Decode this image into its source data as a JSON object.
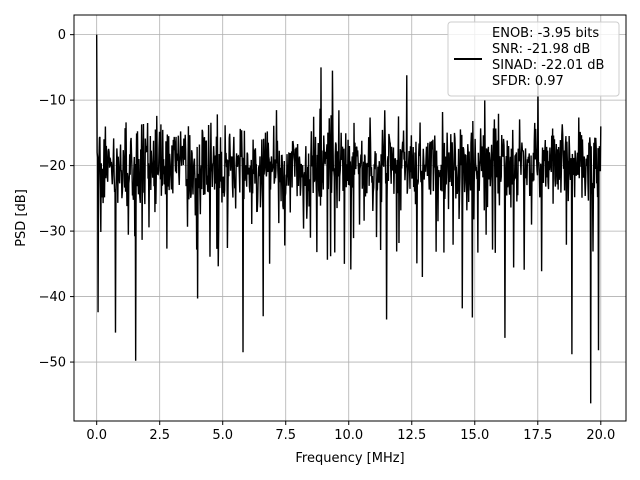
{
  "chart_data": {
    "type": "line",
    "title": "",
    "xlabel": "Frequency [MHz]",
    "ylabel": "PSD [dB]",
    "xlim": [
      -0.9,
      21.0
    ],
    "ylim": [
      -59.0,
      3.0
    ],
    "xticks": [
      0.0,
      2.5,
      5.0,
      7.5,
      10.0,
      12.5,
      15.0,
      17.5,
      20.0
    ],
    "xtick_labels": [
      "0.0",
      "2.5",
      "5.0",
      "7.5",
      "10.0",
      "12.5",
      "15.0",
      "17.5",
      "20.0"
    ],
    "yticks": [
      0,
      -10,
      -20,
      -30,
      -40,
      -50
    ],
    "ytick_labels": [
      "0",
      "−10",
      "−20",
      "−30",
      "−40",
      "−50"
    ],
    "grid": true,
    "legend_position": "top-right",
    "series": [
      {
        "legend_lines": [
          "ENOB: -3.95 bits",
          "SNR: -21.98 dB",
          "SINAD: -22.01 dB",
          "SFDR: 0.97"
        ],
        "color": "#000000",
        "x_start": 0.0,
        "x_end": 20.0,
        "noise_floor_mean": -20.0,
        "noise_band": [
          -10.0,
          -30.0
        ],
        "y_max": 0.0,
        "y_min": -56.3,
        "peaks": [
          {
            "x": 0.0,
            "y": 0.0
          },
          {
            "x": 8.9,
            "y": -5.0
          },
          {
            "x": 9.35,
            "y": -5.5
          },
          {
            "x": 12.3,
            "y": -6.2
          },
          {
            "x": 17.5,
            "y": -7.2
          }
        ],
        "dips": [
          {
            "x": 0.05,
            "y": -42.4
          },
          {
            "x": 0.75,
            "y": -45.5
          },
          {
            "x": 1.55,
            "y": -49.8
          },
          {
            "x": 4.0,
            "y": -40.3
          },
          {
            "x": 5.8,
            "y": -48.5
          },
          {
            "x": 6.6,
            "y": -43.0
          },
          {
            "x": 11.5,
            "y": -43.5
          },
          {
            "x": 14.5,
            "y": -41.8
          },
          {
            "x": 14.9,
            "y": -43.2
          },
          {
            "x": 16.2,
            "y": -46.3
          },
          {
            "x": 18.85,
            "y": -48.8
          },
          {
            "x": 19.6,
            "y": -56.3
          },
          {
            "x": 19.9,
            "y": -48.2
          }
        ]
      }
    ]
  }
}
